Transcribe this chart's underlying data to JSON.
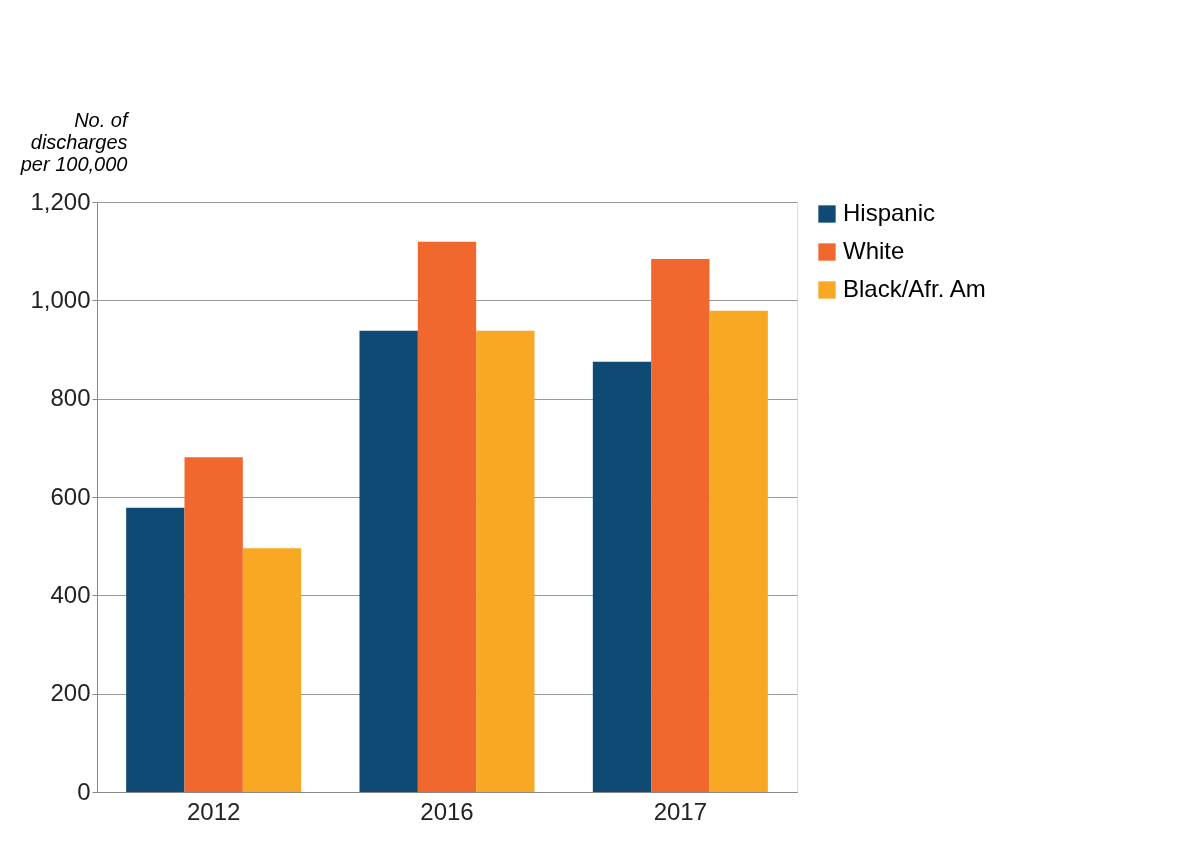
{
  "chart_data": {
    "type": "bar",
    "ylabel": "No. of discharges per 100,000",
    "categories": [
      "2012",
      "2016",
      "2017"
    ],
    "series": [
      {
        "name": "Hispanic",
        "color": "#0e4a74",
        "values": [
          578,
          938,
          875
        ]
      },
      {
        "name": "White",
        "color": "#f0682e",
        "values": [
          681,
          1119,
          1084
        ]
      },
      {
        "name": "Black/Afr. Am",
        "color": "#f8a823",
        "values": [
          496,
          938,
          979
        ]
      }
    ],
    "ylim": [
      0,
      1200
    ],
    "yticks": [
      0,
      200,
      400,
      600,
      800,
      {
        "value": 1000,
        "label": "1,000"
      },
      {
        "value": 1200,
        "label": "1,200"
      }
    ],
    "grid": "y",
    "legend": "right"
  }
}
